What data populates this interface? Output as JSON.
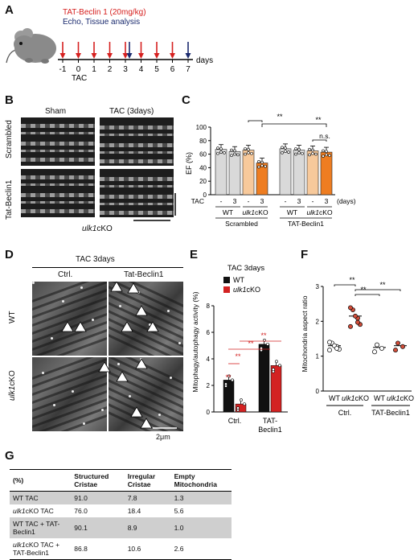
{
  "panelA": {
    "letter": "A",
    "legend_red": "TAT-Beclin 1 (20mg/kg)",
    "legend_blue": "Echo, Tissue analysis",
    "ticks": [
      "-1",
      "0",
      "1",
      "2",
      "3",
      "4",
      "5",
      "6",
      "7"
    ],
    "tac_label": "TAC",
    "days_label": "days",
    "colors": {
      "red": "#d6201f",
      "blue": "#1a2a6e"
    }
  },
  "panelB": {
    "letter": "B",
    "col_sham": "Sham",
    "col_tac": "TAC (3days)",
    "row_scrambled": "Scrambled",
    "row_tat": "Tat-Beclin1",
    "genotype_italic": "ulk1",
    "genotype_suffix": "cKO"
  },
  "panelC": {
    "letter": "C",
    "ylabel": "EF (%)",
    "yticks": [
      "100",
      "80",
      "60",
      "40",
      "20",
      "0"
    ],
    "tac_row_label": "TAC",
    "tac_values": [
      "-",
      "3",
      "-",
      "3",
      "-",
      "3",
      "-",
      "3"
    ],
    "days_label": "(days)",
    "genotypes": [
      "WT",
      "ulk1cKO",
      "WT",
      "ulk1cKO"
    ],
    "groups": [
      "Scrambled",
      "TAT-Beclin1"
    ],
    "sig1": "**",
    "sig2": "**",
    "ns": "n.s.",
    "chart_data": {
      "type": "bar",
      "categories": [
        "WT -",
        "WT 3",
        "ulk1cKO -",
        "ulk1cKO 3",
        "WT -",
        "WT 3",
        "ulk1cKO -",
        "ulk1cKO 3"
      ],
      "values": [
        67,
        64,
        66,
        47,
        68,
        66,
        65,
        63
      ],
      "ylim": [
        0,
        100
      ]
    }
  },
  "panelD": {
    "letter": "D",
    "header": "TAC 3days",
    "col_ctrl": "Ctrl.",
    "col_tat": "Tat-Beclin1",
    "row_wt": "WT",
    "row_ko_italic": "ulk1",
    "row_ko_suffix": "cKO",
    "scale": "2μm"
  },
  "panelE": {
    "letter": "E",
    "title": "TAC 3days",
    "ylabel": "Mitophagy/autophagy activity (%)",
    "yticks": [
      "8",
      "6",
      "4",
      "2",
      "0"
    ],
    "legend_wt": "WT",
    "legend_ko_italic": "ulk1",
    "legend_ko_suffix": "cKO",
    "x_ctrl": "Ctrl.",
    "x_tat1": "TAT-",
    "x_tat2": "Beclin1",
    "sig": "**",
    "chart_data": {
      "type": "bar",
      "categories": [
        "Ctrl.",
        "TAT-Beclin1"
      ],
      "series": [
        {
          "name": "WT",
          "values": [
            2.4,
            5.1
          ]
        },
        {
          "name": "ulk1cKO",
          "values": [
            0.6,
            3.5
          ]
        }
      ],
      "ylim": [
        0,
        8
      ]
    }
  },
  "panelF": {
    "letter": "F",
    "ylabel": "Mitochondria aspect ratio",
    "yticks": [
      "3",
      "2",
      "1",
      "0"
    ],
    "x_labels": [
      "WT",
      "ulk1cKO",
      "WT",
      "ulk1cKO"
    ],
    "group_ctrl": "Ctrl.",
    "group_tat": "TAT-Beclin1",
    "sig": "**",
    "chart_data": {
      "type": "scatter",
      "categories": [
        "WT Ctrl.",
        "ulk1cKO Ctrl.",
        "WT TAT-Beclin1",
        "ulk1cKO TAT-Beclin1"
      ],
      "means": [
        1.3,
        2.15,
        1.25,
        1.3
      ],
      "ylim": [
        0,
        3
      ]
    }
  },
  "panelG": {
    "letter": "G",
    "headers": [
      "(%)",
      "Structured Cristae",
      "Irregular Cristae",
      "Empty Mitochondria"
    ],
    "rows": [
      {
        "label": "WT TAC",
        "values": [
          "91.0",
          "7.8",
          "1.3"
        ]
      },
      {
        "label": "ulk1cKO TAC",
        "values": [
          "76.0",
          "18.4",
          "5.6"
        ]
      },
      {
        "label": "WT TAC + TAT-Beclin1",
        "values": [
          "90.1",
          "8.9",
          "1.0"
        ]
      },
      {
        "label": "ulk1cKO TAC + TAT-Beclin1",
        "values": [
          "86.8",
          "10.6",
          "2.6"
        ]
      }
    ]
  }
}
